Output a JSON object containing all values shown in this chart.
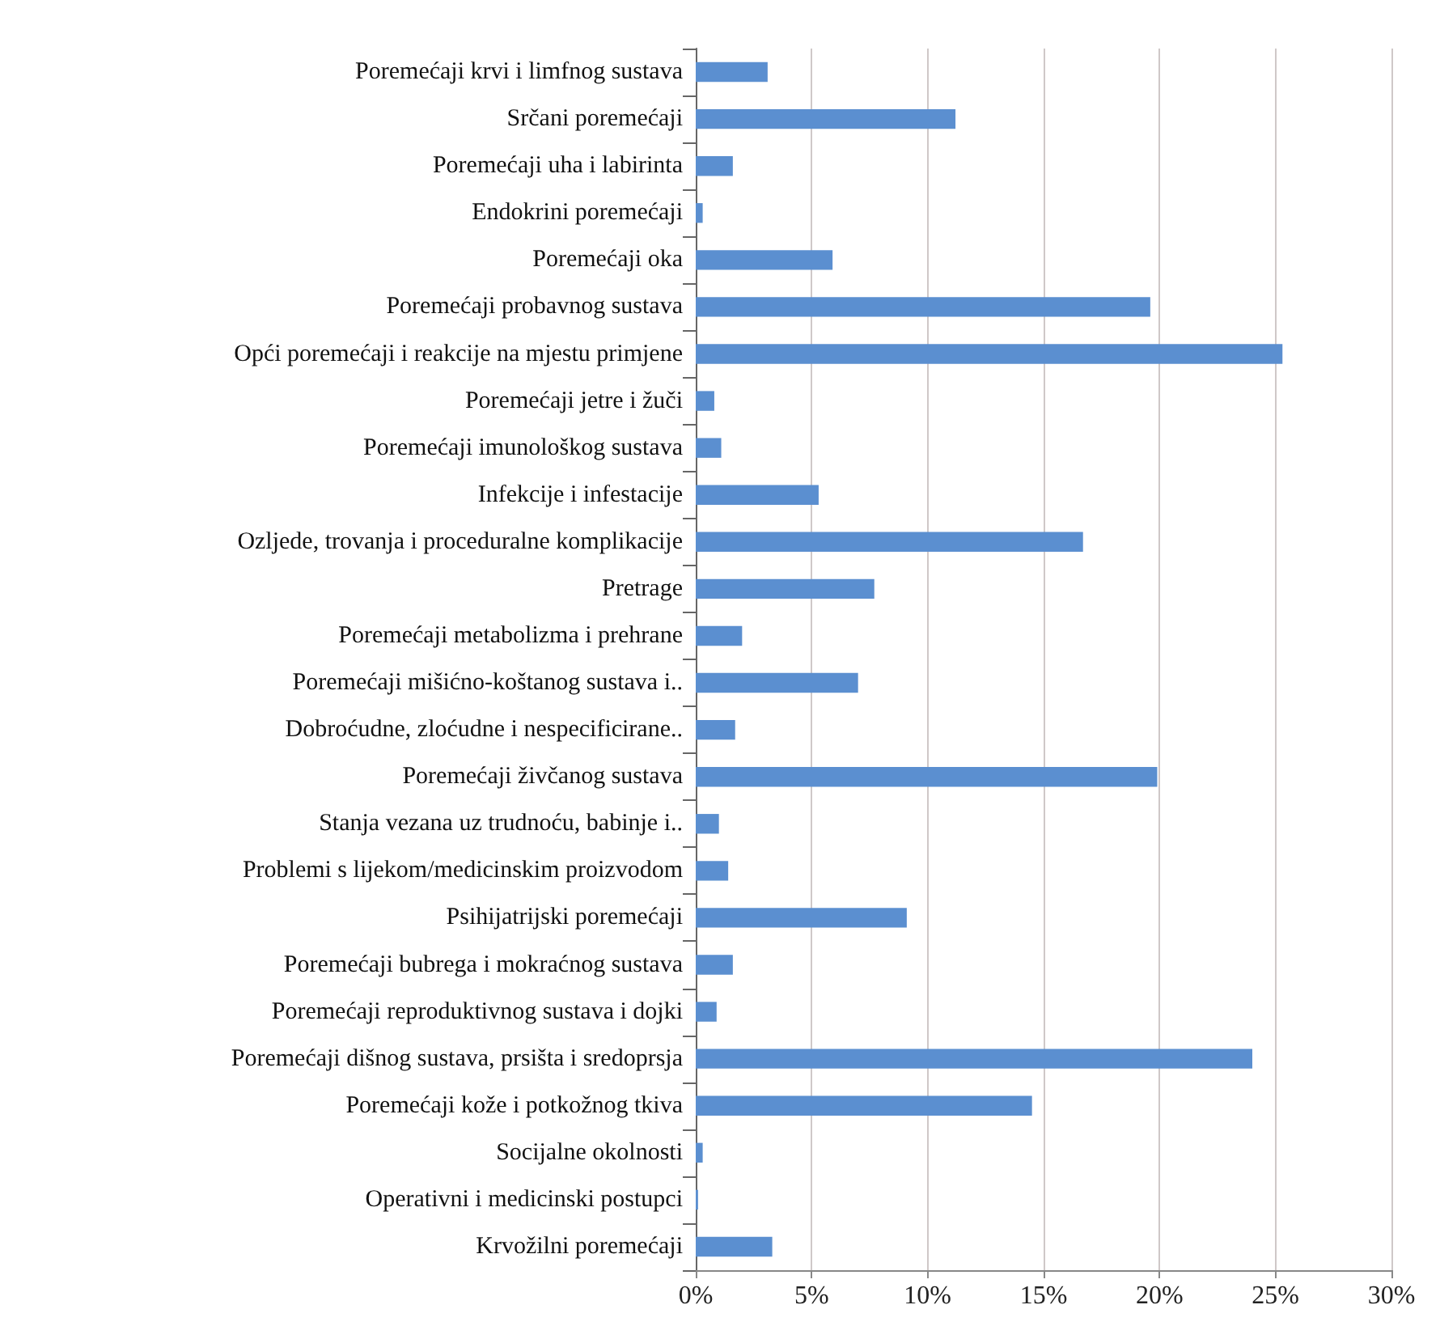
{
  "chart_data": {
    "type": "bar",
    "orientation": "horizontal",
    "categories": [
      "Poremećaji krvi i limfnog sustava",
      "Srčani poremećaji",
      "Poremećaji uha i labirinta",
      "Endokrini poremećaji",
      "Poremećaji oka",
      "Poremećaji probavnog sustava",
      "Opći poremećaji i reakcije na mjestu primjene",
      "Poremećaji jetre i žuči",
      "Poremećaji imunološkog sustava",
      "Infekcije i infestacije",
      "Ozljede, trovanja i proceduralne komplikacije",
      "Pretrage",
      "Poremećaji metabolizma i prehrane",
      "Poremećaji mišićno-koštanog sustava i..",
      "Dobroćudne, zloćudne i nespecificirane..",
      "Poremećaji živčanog sustava",
      "Stanja vezana uz trudnoću, babinje i..",
      "Problemi s lijekom/medicinskim proizvodom",
      "Psihijatrijski poremećaji",
      "Poremećaji bubrega i mokraćnog sustava",
      "Poremećaji reproduktivnog sustava i dojki",
      "Poremećaji dišnog sustava, prsišta i sredoprsja",
      "Poremećaji kože i potkožnog tkiva",
      "Socijalne okolnosti",
      "Operativni i medicinski postupci",
      "Krvožilni poremećaji"
    ],
    "values": [
      3.1,
      11.2,
      1.6,
      0.3,
      5.9,
      19.6,
      25.3,
      0.8,
      1.1,
      5.3,
      16.7,
      7.7,
      2.0,
      7.0,
      1.7,
      19.9,
      1.0,
      1.4,
      9.1,
      1.6,
      0.9,
      24.0,
      14.5,
      0.3,
      0.1,
      3.3
    ],
    "color": "#5b8fd0",
    "xlim": [
      0,
      30
    ],
    "xticks": [
      {
        "value": 0,
        "label": "0%"
      },
      {
        "value": 5,
        "label": "5%"
      },
      {
        "value": 10,
        "label": "10%"
      },
      {
        "value": 15,
        "label": "15%"
      },
      {
        "value": 20,
        "label": "20%"
      },
      {
        "value": 25,
        "label": "25%"
      },
      {
        "value": 30,
        "label": "30%"
      }
    ],
    "grid": "x"
  }
}
